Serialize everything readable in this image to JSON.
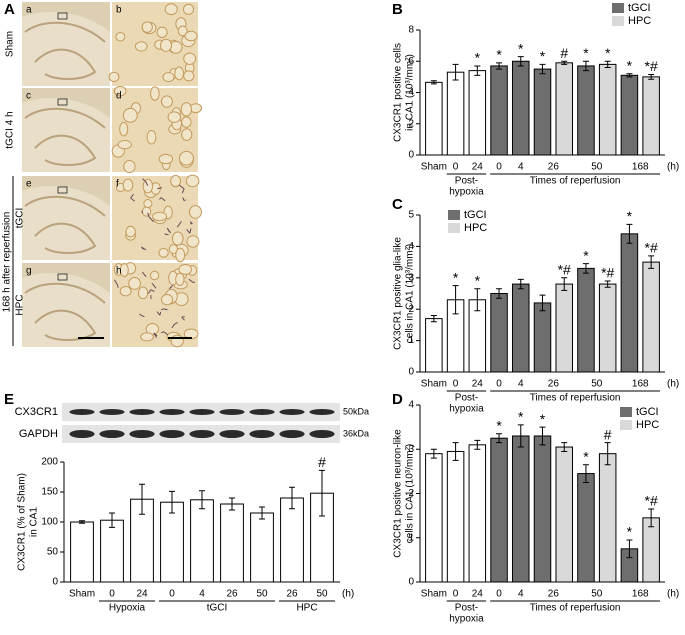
{
  "micrographs": {
    "panel": "A",
    "tiles": [
      "a",
      "b",
      "c",
      "d",
      "e",
      "f",
      "g",
      "h"
    ],
    "row_labels": [
      "Sham",
      "tGCI 4 h"
    ],
    "group_label": "168 h after reperfusion",
    "subgroup_labels": [
      "tGCI",
      "HPC"
    ]
  },
  "chart_data": [
    {
      "type": "bar",
      "panel": "B",
      "ylabel": [
        "CX3CR1 positive cells",
        "in CA1 (10³/mm²)"
      ],
      "categories": [
        "Sham",
        "0",
        "24",
        "0",
        "4",
        "26",
        "50",
        "168"
      ],
      "x_unit": "(h)",
      "x_group_labels": [
        [
          "Post-",
          "hypoxia"
        ],
        [
          "Times of reperfusion"
        ]
      ],
      "ylim": [
        0,
        8
      ],
      "yticks": [
        0,
        2,
        4,
        6,
        8
      ],
      "legend": "upper right",
      "series": [
        {
          "color": "#ffffff",
          "values": [
            4.65,
            5.3,
            5.4,
            null,
            null,
            null,
            null,
            null
          ],
          "errors": [
            0.1,
            0.5,
            0.3,
            null,
            null,
            null,
            null,
            null
          ],
          "annotations": [
            null,
            null,
            "*",
            null,
            null,
            null,
            null,
            null
          ]
        },
        {
          "name": "tGCI",
          "color": "#6e6e6e",
          "values": [
            null,
            null,
            null,
            5.7,
            6.0,
            5.5,
            5.7,
            5.1
          ],
          "errors": [
            null,
            null,
            null,
            0.2,
            0.3,
            0.3,
            0.3,
            0.1
          ],
          "annotations": [
            null,
            null,
            null,
            "*",
            "*",
            "*",
            "*",
            "*"
          ]
        },
        {
          "name": "HPC",
          "color": "#d9d9d9",
          "values": [
            null,
            null,
            null,
            null,
            null,
            5.9,
            5.8,
            5.0
          ],
          "errors": [
            null,
            null,
            null,
            null,
            null,
            0.1,
            0.2,
            0.15
          ],
          "annotations": [
            null,
            null,
            null,
            null,
            null,
            "#",
            "*",
            "*#"
          ]
        }
      ]
    },
    {
      "type": "bar",
      "panel": "C",
      "ylabel": [
        "CX3CR1 positive glia-like",
        "cells in CA1 (10³/mm²)"
      ],
      "categories": [
        "Sham",
        "0",
        "24",
        "0",
        "4",
        "26",
        "50",
        "168"
      ],
      "x_unit": "(h)",
      "x_group_labels": [
        [
          "Post-",
          "hypoxia"
        ],
        [
          "Times of reperfusion"
        ]
      ],
      "ylim": [
        0,
        5
      ],
      "yticks": [
        0,
        1,
        2,
        3,
        4,
        5
      ],
      "legend": "upper left",
      "series": [
        {
          "color": "#ffffff",
          "values": [
            1.7,
            2.3,
            2.3,
            null,
            null,
            null,
            null,
            null
          ],
          "errors": [
            0.1,
            0.45,
            0.35,
            null,
            null,
            null,
            null,
            null
          ],
          "annotations": [
            null,
            "*",
            "*",
            null,
            null,
            null,
            null,
            null
          ]
        },
        {
          "name": "tGCI",
          "color": "#6e6e6e",
          "values": [
            null,
            null,
            null,
            2.5,
            2.8,
            2.2,
            3.3,
            4.4
          ],
          "errors": [
            null,
            null,
            null,
            0.15,
            0.15,
            0.25,
            0.15,
            0.3
          ],
          "annotations": [
            null,
            null,
            null,
            null,
            null,
            null,
            "*",
            "*"
          ]
        },
        {
          "name": "HPC",
          "color": "#d9d9d9",
          "values": [
            null,
            null,
            null,
            null,
            null,
            2.8,
            2.8,
            3.5
          ],
          "errors": [
            null,
            null,
            null,
            null,
            null,
            0.2,
            0.1,
            0.2
          ],
          "annotations": [
            null,
            null,
            null,
            null,
            null,
            "*#",
            "*#",
            "*#"
          ]
        }
      ]
    },
    {
      "type": "bar",
      "panel": "D",
      "ylabel": [
        "CX3CR1 positive neuron-like",
        "cells in CA1 (10³/mm²)"
      ],
      "categories": [
        "Sham",
        "0",
        "24",
        "0",
        "4",
        "26",
        "50",
        "168"
      ],
      "x_unit": "(h)",
      "x_group_labels": [
        [
          "Post-",
          "hypoxia"
        ],
        [
          "Times of reperfusion"
        ]
      ],
      "ylim": [
        0,
        4
      ],
      "yticks": [
        0,
        1,
        2,
        3,
        4
      ],
      "legend": "upper right",
      "series": [
        {
          "color": "#ffffff",
          "values": [
            2.9,
            2.95,
            3.1,
            null,
            null,
            null,
            null,
            null
          ],
          "errors": [
            0.1,
            0.2,
            0.1,
            null,
            null,
            null,
            null,
            null
          ],
          "annotations": [
            null,
            null,
            null,
            null,
            null,
            null,
            null,
            null
          ]
        },
        {
          "name": "tGCI",
          "color": "#6e6e6e",
          "values": [
            null,
            null,
            null,
            3.25,
            3.3,
            3.3,
            2.45,
            0.75
          ],
          "errors": [
            null,
            null,
            null,
            0.1,
            0.25,
            0.2,
            0.2,
            0.2
          ],
          "annotations": [
            null,
            null,
            null,
            "*",
            "*",
            "*",
            "*",
            "*"
          ]
        },
        {
          "name": "HPC",
          "color": "#d9d9d9",
          "values": [
            null,
            null,
            null,
            null,
            null,
            3.05,
            2.9,
            1.45
          ],
          "errors": [
            null,
            null,
            null,
            null,
            null,
            0.1,
            0.25,
            0.2
          ],
          "annotations": [
            null,
            null,
            null,
            null,
            null,
            null,
            "#",
            "*#"
          ]
        }
      ]
    },
    {
      "type": "bar",
      "panel": "E",
      "ylabel": [
        "CX3CR1 (% of Sham)",
        "in CA1"
      ],
      "blot": [
        {
          "label": "CX3CR1",
          "size": "50kDa"
        },
        {
          "label": "GAPDH",
          "size": "36kDa"
        }
      ],
      "categories": [
        "Sham",
        "0",
        "24",
        "0",
        "4",
        "26",
        "50",
        "26",
        "50"
      ],
      "x_unit": "(h)",
      "x_group_labels": [
        [
          "Hypoxia"
        ],
        [
          "tGCI"
        ],
        [
          "HPC"
        ]
      ],
      "ylim": [
        0,
        200
      ],
      "yticks": [
        0,
        50,
        100,
        150,
        200
      ],
      "series": [
        {
          "color": "#ffffff",
          "values": [
            100,
            103,
            138,
            133,
            137,
            130,
            115,
            140,
            148
          ],
          "errors": [
            2,
            12,
            25,
            18,
            15,
            10,
            10,
            18,
            38
          ],
          "annotations": [
            null,
            null,
            null,
            null,
            null,
            null,
            null,
            null,
            "#"
          ]
        }
      ]
    }
  ]
}
